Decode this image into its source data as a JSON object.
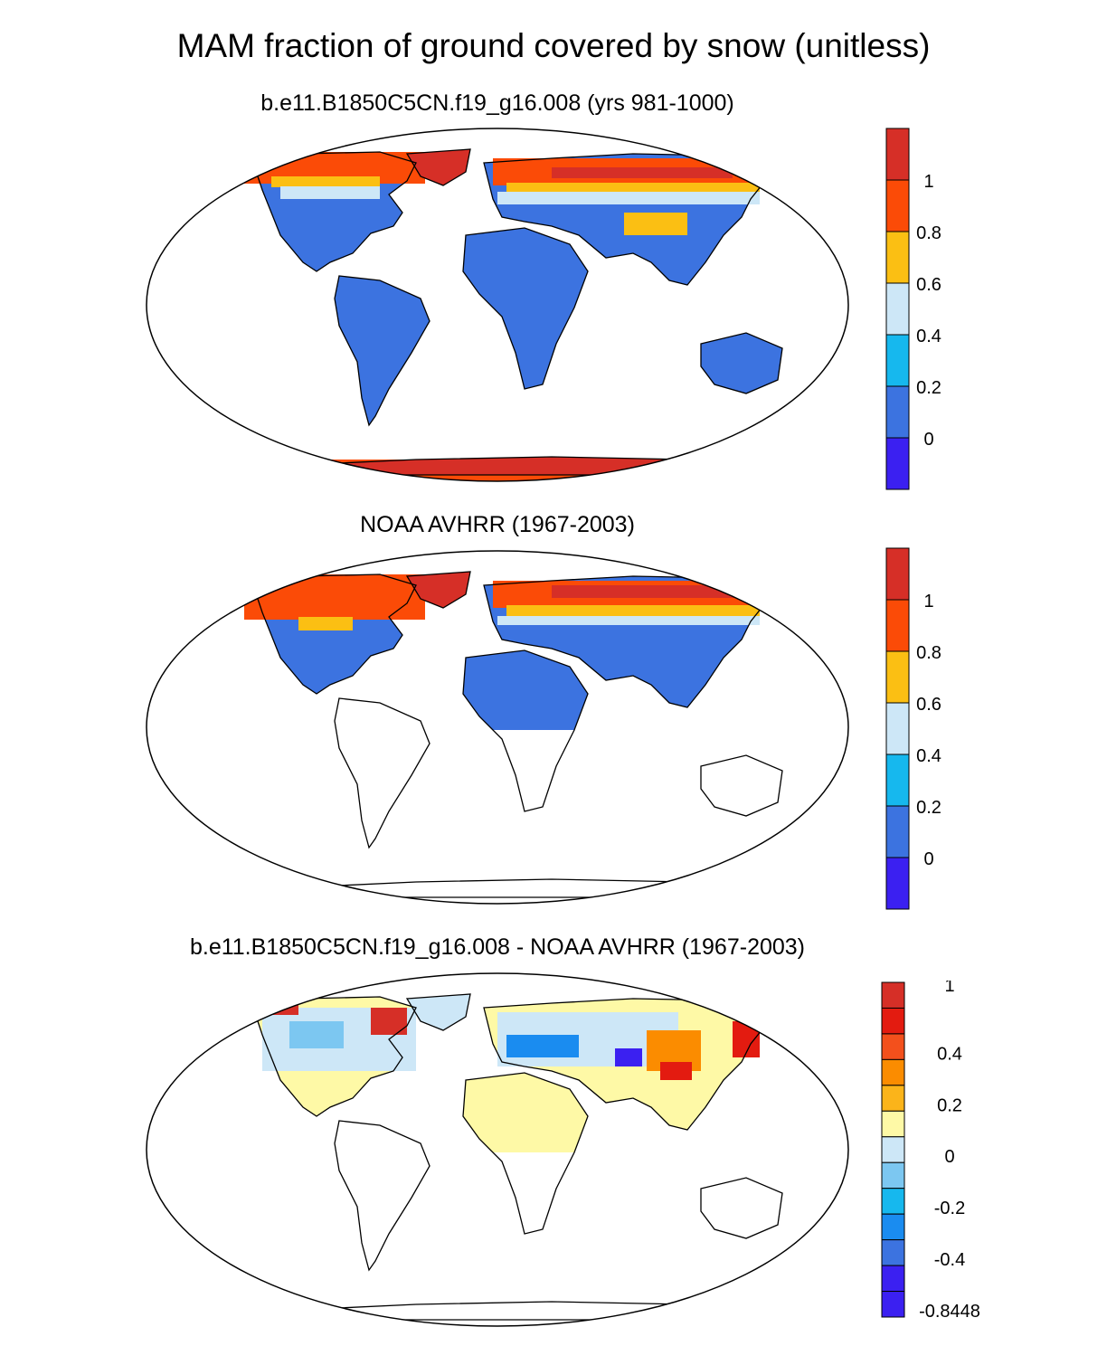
{
  "figure": {
    "title": "MAM fraction of ground covered by snow (unitless)"
  },
  "panels": [
    {
      "title": "b.e11.B1850C5CN.f19_g16.008 (yrs 981-1000)",
      "colorbar": {
        "labels": [
          "1",
          "0.8",
          "0.6",
          "0.4",
          "0.2",
          "0"
        ],
        "colors": [
          "#d62f27",
          "#fb4b07",
          "#fbbf13",
          "#cde7f7",
          "#16b8ee",
          "#3c73e0",
          "#3b20f1"
        ]
      }
    },
    {
      "title": "NOAA AVHRR (1967-2003)",
      "colorbar": {
        "labels": [
          "1",
          "0.8",
          "0.6",
          "0.4",
          "0.2",
          "0"
        ],
        "colors": [
          "#d62f27",
          "#fb4b07",
          "#fbbf13",
          "#cde7f7",
          "#16b8ee",
          "#3c73e0",
          "#3b20f1"
        ]
      }
    },
    {
      "title": "b.e11.B1850C5CN.f19_g16.008 - NOAA AVHRR (1967-2003)",
      "colorbar": {
        "labels": [
          "1",
          "0.4",
          "0.2",
          "0",
          "-0.2",
          "-0.4",
          "-0.8448"
        ],
        "colors": [
          "#d62f27",
          "#e31b10",
          "#f3501c",
          "#fb8c00",
          "#fbb41a",
          "#fef9a6",
          "#cde7f7",
          "#7cc7f1",
          "#16b8ee",
          "#1a8cf0",
          "#3c73e0",
          "#3b20f1",
          "#3b20f1"
        ]
      }
    }
  ]
}
